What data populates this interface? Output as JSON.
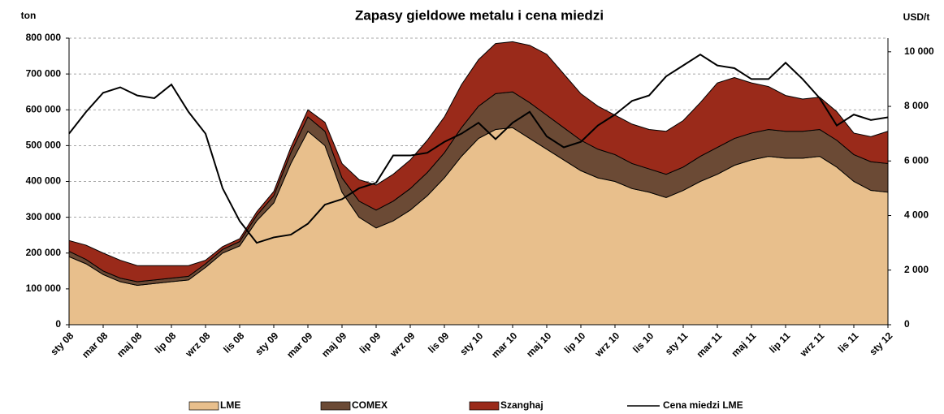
{
  "chart_data": {
    "type": "stacked_area_line",
    "title": "Zapasy gieldowe metalu i cena miedzi",
    "y_label": "ton",
    "y2_label": "USD/t",
    "categories": [
      "sty 08",
      null,
      "mar 08",
      null,
      "maj 08",
      null,
      "lip 08",
      null,
      "wrz 08",
      null,
      "lis 08",
      null,
      "sty 09",
      null,
      "mar 09",
      null,
      "maj 09",
      null,
      "lip 09",
      null,
      "wrz 09",
      null,
      "lis 09",
      null,
      "sty 10",
      null,
      "mar 10",
      null,
      "maj 10",
      null,
      "lip 10",
      null,
      "wrz 10",
      null,
      "lis 10",
      null,
      "sty 11",
      null,
      "mar 11",
      null,
      "maj 11",
      null,
      "lip 11",
      null,
      "wrz 11",
      null,
      "lis 11",
      null,
      "sty 12"
    ],
    "series": [
      {
        "name": "LME",
        "color": "#e8bf8c",
        "values": [
          190000,
          170000,
          140000,
          120000,
          110000,
          115000,
          120000,
          125000,
          160000,
          200000,
          220000,
          290000,
          340000,
          450000,
          540000,
          500000,
          370000,
          300000,
          270000,
          290000,
          320000,
          360000,
          410000,
          470000,
          520000,
          545000,
          550000,
          520000,
          490000,
          460000,
          430000,
          410000,
          400000,
          380000,
          370000,
          355000,
          375000,
          400000,
          420000,
          445000,
          460000,
          470000,
          465000,
          465000,
          470000,
          440000,
          400000,
          375000,
          370000
        ]
      },
      {
        "name": "COMEX",
        "color": "#6b4a35",
        "values": [
          15000,
          12000,
          10000,
          10000,
          10000,
          10000,
          10000,
          10000,
          10000,
          10000,
          12000,
          15000,
          20000,
          30000,
          40000,
          40000,
          40000,
          45000,
          50000,
          55000,
          60000,
          65000,
          70000,
          80000,
          90000,
          100000,
          100000,
          100000,
          95000,
          90000,
          85000,
          80000,
          75000,
          70000,
          65000,
          65000,
          65000,
          70000,
          75000,
          75000,
          75000,
          75000,
          75000,
          75000,
          75000,
          75000,
          75000,
          80000,
          80000
        ]
      },
      {
        "name": "Szanghaj",
        "color": "#9a2a1a",
        "values": [
          30000,
          40000,
          50000,
          50000,
          45000,
          40000,
          35000,
          30000,
          10000,
          8000,
          8000,
          10000,
          12000,
          15000,
          20000,
          25000,
          40000,
          60000,
          70000,
          75000,
          80000,
          90000,
          100000,
          120000,
          130000,
          140000,
          140000,
          160000,
          170000,
          150000,
          130000,
          120000,
          110000,
          110000,
          110000,
          120000,
          130000,
          150000,
          180000,
          170000,
          140000,
          120000,
          100000,
          90000,
          90000,
          80000,
          60000,
          70000,
          90000
        ]
      },
      {
        "name": "Cena miedzi LME",
        "color": "#000000",
        "axis": "y2",
        "values": [
          7000,
          7800,
          8500,
          8700,
          8400,
          8300,
          8800,
          7800,
          7000,
          5000,
          3800,
          3000,
          3200,
          3300,
          3700,
          4400,
          4600,
          5000,
          5200,
          6200,
          6200,
          6300,
          6700,
          7000,
          7400,
          6800,
          7400,
          7800,
          6900,
          6500,
          6700,
          7300,
          7700,
          8200,
          8400,
          9100,
          9500,
          9900,
          9500,
          9400,
          9000,
          9000,
          9600,
          9000,
          8300,
          7300,
          7700,
          7500,
          7600
        ]
      }
    ],
    "ylim": [
      0,
      800000
    ],
    "yticks": [
      0,
      {
        "value": 100000,
        "label": "100 000"
      },
      {
        "value": 200000,
        "label": "200 000"
      },
      {
        "value": 300000,
        "label": "300 000"
      },
      {
        "value": 400000,
        "label": "400 000"
      },
      {
        "value": 500000,
        "label": "500 000"
      },
      {
        "value": 600000,
        "label": "600 000"
      },
      {
        "value": 700000,
        "label": "700 000"
      },
      {
        "value": 800000,
        "label": "800 000"
      }
    ],
    "y2lim": [
      0,
      10500
    ],
    "y2ticks": [
      0,
      {
        "value": 2000,
        "label": "2 000"
      },
      {
        "value": 4000,
        "label": "4 000"
      },
      {
        "value": 6000,
        "label": "6 000"
      },
      {
        "value": 8000,
        "label": "8 000"
      },
      {
        "value": 10000,
        "label": "10 000"
      }
    ],
    "grid": true
  }
}
